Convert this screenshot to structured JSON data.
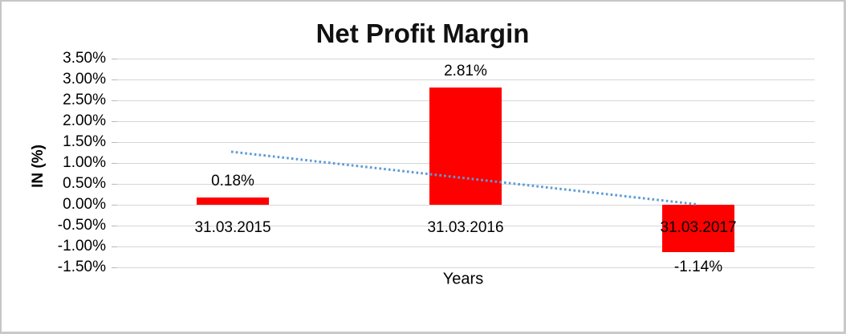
{
  "window": {
    "background": "#ffffff",
    "border_color": "#c6c6c6"
  },
  "chart_data": {
    "type": "bar",
    "title": "Net Profit Margin",
    "xlabel": "Years",
    "ylabel": "IN (%)",
    "categories": [
      "31.03.2015",
      "31.03.2016",
      "31.03.2017"
    ],
    "values": [
      0.18,
      2.81,
      -1.14
    ],
    "data_labels": [
      "0.18%",
      "2.81%",
      "-1.14%"
    ],
    "bar_color": "#ff0000",
    "ylim": [
      -1.5,
      3.5
    ],
    "ytick_step": 0.5,
    "yticks": [
      "3.50%",
      "3.00%",
      "2.50%",
      "2.00%",
      "1.50%",
      "1.00%",
      "0.50%",
      "0.00%",
      "-0.50%",
      "-1.00%",
      "-1.50%"
    ],
    "grid": true,
    "gridline_color": "#d6d6d6",
    "tick_mark_color": "#b9b9b9",
    "legend": "none",
    "trendline": {
      "style": "dotted",
      "color": "#5b9bd5",
      "points": [
        {
          "category_index": 0,
          "value": 1.27
        },
        {
          "category_index": 2,
          "value": 0.01
        }
      ]
    }
  }
}
